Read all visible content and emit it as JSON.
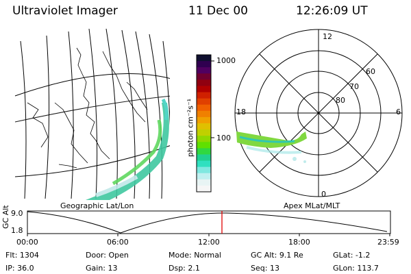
{
  "header": {
    "instrument": "Ultraviolet Imager",
    "date": "11 Dec 00",
    "time": "12:26:09 UT"
  },
  "left_panel": {
    "caption": "Geographic Lat/Lon"
  },
  "colorbar": {
    "unit_label": "photon cm⁻²s⁻¹",
    "scale": "log",
    "ticks": [
      "1000",
      "100"
    ],
    "colors": [
      "#101030",
      "#300050",
      "#500060",
      "#700030",
      "#900010",
      "#b00000",
      "#d02000",
      "#e04000",
      "#f06000",
      "#f08000",
      "#f0a000",
      "#e0c000",
      "#c0d000",
      "#90d800",
      "#60e000",
      "#30d840",
      "#20d090",
      "#30e0c0",
      "#80e8e0",
      "#c0f0f0",
      "#e8f4f4",
      "#f6f6f6"
    ]
  },
  "right_panel": {
    "caption": "Apex MLat/MLT",
    "mlt_labels": {
      "top": "12",
      "left": "18",
      "right": "6",
      "bottom": "0"
    },
    "lat_labels": [
      "60",
      "70",
      "80"
    ]
  },
  "altitude_plot": {
    "ylabel": "GC Alt",
    "yticks": [
      "9.0",
      "1.8"
    ],
    "xticks": [
      "00:00",
      "06:00",
      "12:00",
      "18:00",
      "23:59"
    ],
    "marker_color": "#e00000"
  },
  "info": {
    "row1": [
      {
        "label": "Flt:",
        "value": "1304"
      },
      {
        "label": "Door:",
        "value": "Open"
      },
      {
        "label": "Mode:",
        "value": "Normal"
      },
      {
        "label": "GC Alt:",
        "value": "9.1 Re"
      },
      {
        "label": "GLat:",
        "value": "-1.2"
      }
    ],
    "row2": [
      {
        "label": "IP:",
        "value": "36.0"
      },
      {
        "label": "Gain:",
        "value": "13"
      },
      {
        "label": "Dsp:",
        "value": "2.1"
      },
      {
        "label": "Seq:",
        "value": "13"
      },
      {
        "label": "GLon:",
        "value": "113.7"
      }
    ]
  }
}
